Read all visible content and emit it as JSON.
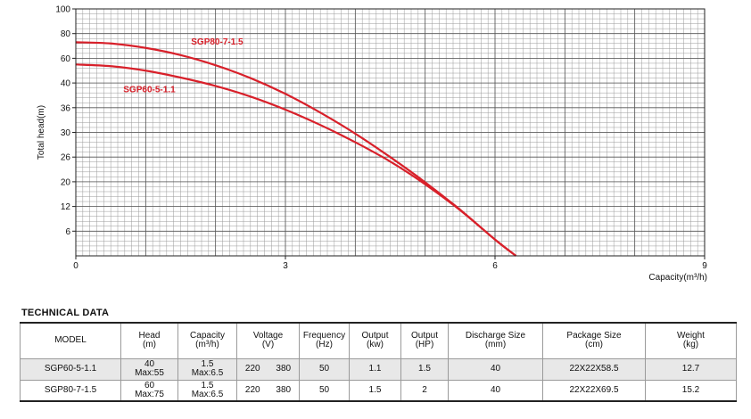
{
  "chart_data": {
    "type": "line",
    "xlabel": "Capacity(m³/h)",
    "ylabel": "Total head(m)",
    "xlim": [
      0,
      9
    ],
    "x_ticks": [
      "0",
      "3",
      "6",
      "9"
    ],
    "x_tick_values": [
      0,
      3,
      6,
      9
    ],
    "y_tick_labels": [
      "6",
      "12",
      "20",
      "26",
      "30",
      "36",
      "40",
      "60",
      "80",
      "100"
    ],
    "grid": true,
    "series": [
      {
        "name": "SGP80-7-1.5",
        "color": "#d8202a",
        "x": [
          0,
          0.5,
          1,
          1.5,
          2,
          2.5,
          3,
          3.5,
          4,
          4.5,
          5,
          5.5,
          6,
          6.3
        ],
        "y_level": [
          8.65,
          8.6,
          8.42,
          8.13,
          7.72,
          7.2,
          6.56,
          5.8,
          4.95,
          4.0,
          2.98,
          1.87,
          0.66,
          0
        ]
      },
      {
        "name": "SGP60-5-1.1",
        "color": "#d8202a",
        "x": [
          0,
          0.5,
          1,
          1.5,
          2,
          2.5,
          3,
          3.5,
          4,
          4.5,
          5,
          5.5,
          6,
          6.3
        ],
        "y_level": [
          7.75,
          7.68,
          7.5,
          7.22,
          6.88,
          6.45,
          5.92,
          5.3,
          4.6,
          3.82,
          2.9,
          1.85,
          0.66,
          0
        ]
      }
    ]
  },
  "table": {
    "title": "TECHNICAL DATA",
    "headers": {
      "model": "MODEL",
      "head_1": "Head",
      "head_2": "(m)",
      "capacity_1": "Capacity",
      "capacity_2": "(m³/h)",
      "voltage_1": "Voltage",
      "voltage_2": "(V)",
      "frequency_1": "Frequency",
      "frequency_2": "(Hz)",
      "output_kw_1": "Output",
      "output_kw_2": "(kw)",
      "output_hp_1": "Output",
      "output_hp_2": "(HP)",
      "discharge_1": "Discharge Size",
      "discharge_2": "(mm)",
      "package_1": "Package Size",
      "package_2": "(cm)",
      "weight_1": "Weight",
      "weight_2": "(kg)"
    },
    "rows": [
      {
        "model": "SGP60-5-1.1",
        "head_1": "40",
        "head_2": "Max:55",
        "capacity_1": "1.5",
        "capacity_2": "Max:6.5",
        "voltage_a": "220",
        "voltage_b": "380",
        "frequency": "50",
        "output_kw": "1.1",
        "output_hp": "1.5",
        "discharge": "40",
        "package": "22X22X58.5",
        "weight": "12.7"
      },
      {
        "model": "SGP80-7-1.5",
        "head_1": "60",
        "head_2": "Max:75",
        "capacity_1": "1.5",
        "capacity_2": "Max:6.5",
        "voltage_a": "220",
        "voltage_b": "380",
        "frequency": "50",
        "output_kw": "1.5",
        "output_hp": "2",
        "discharge": "40",
        "package": "22X22X69.5",
        "weight": "15.2"
      }
    ]
  }
}
